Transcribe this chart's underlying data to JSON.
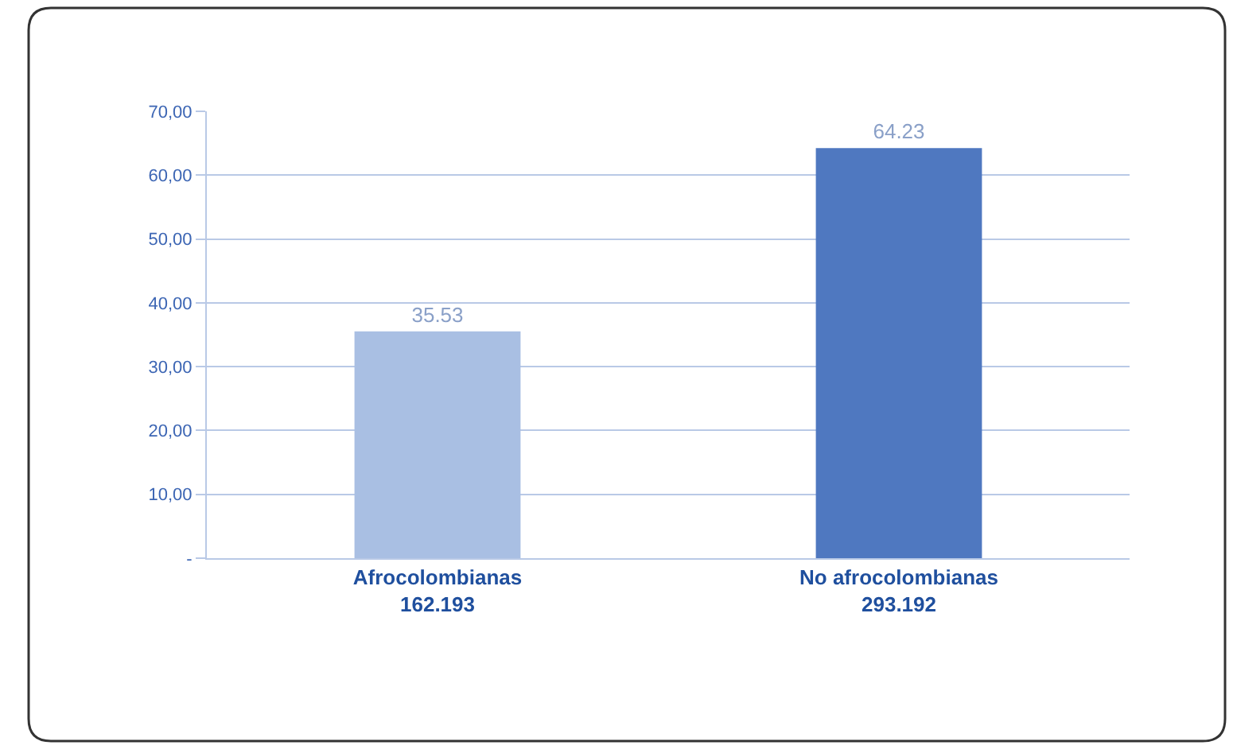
{
  "chart_data": {
    "type": "bar",
    "categories": [
      "Afrocolombianas\n162.193",
      "No afrocolombianas\n293.192"
    ],
    "values": [
      35.53,
      64.23
    ],
    "colors": [
      "#a9bfe3",
      "#4f78c0"
    ],
    "data_labels": true,
    "ylim": [
      0,
      70
    ],
    "yticks": [
      {
        "value": 0,
        "label": "-"
      },
      {
        "value": 10,
        "label": "10,00"
      },
      {
        "value": 20,
        "label": "20,00"
      },
      {
        "value": 30,
        "label": "30,00"
      },
      {
        "value": 40,
        "label": "40,00"
      },
      {
        "value": 50,
        "label": "50,00"
      },
      {
        "value": 60,
        "label": "60,00"
      },
      {
        "value": 70,
        "label": "70,00"
      }
    ],
    "grid": "y"
  }
}
